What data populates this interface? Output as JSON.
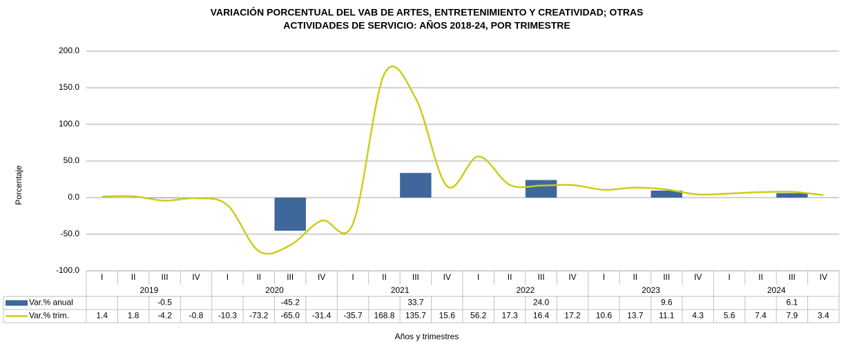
{
  "chart_data": {
    "type": "bar-line",
    "title": [
      "VARIACIÓN PORCENTUAL DEL VAB DE ARTES, ENTRETENIMIENTO Y CREATIVIDAD;  OTRAS",
      "ACTIVIDADES DE SERVICIO: AÑOS 2018-24, POR TRIMESTRE"
    ],
    "y_label": "Porcentaje",
    "x_label": "Años y trimestres",
    "categories": [
      "I",
      "II",
      "III",
      "IV",
      "I",
      "II",
      "III",
      "IV",
      "I",
      "II",
      "III",
      "IV",
      "I",
      "II",
      "III",
      "IV",
      "I",
      "II",
      "III",
      "IV",
      "I",
      "II",
      "III",
      "IV"
    ],
    "groups": [
      "2019",
      "2020",
      "2021",
      "2022",
      "2023",
      "2024"
    ],
    "ylim": [
      -100,
      200
    ],
    "yticks": [
      {
        "value": -100,
        "label": "-100.0"
      },
      {
        "value": -50,
        "label": "-50.0"
      },
      {
        "value": 0,
        "label": "0.0"
      },
      {
        "value": 50,
        "label": "50.0"
      },
      {
        "value": 100,
        "label": "100.0"
      },
      {
        "value": 150,
        "label": "150.0"
      },
      {
        "value": 200,
        "label": "200.0"
      }
    ],
    "grid": true,
    "series": [
      {
        "name": "Var.% anual",
        "type": "bar",
        "color": "#3e689c",
        "values": [
          null,
          null,
          -0.5,
          null,
          null,
          null,
          -45.2,
          null,
          null,
          null,
          33.7,
          null,
          null,
          null,
          24.0,
          null,
          null,
          null,
          9.6,
          null,
          null,
          null,
          6.1,
          null
        ],
        "value_labels": [
          null,
          null,
          "-0.5",
          null,
          null,
          null,
          "-45.2",
          null,
          null,
          null,
          "33.7",
          null,
          null,
          null,
          "24.0",
          null,
          null,
          null,
          "9.6",
          null,
          null,
          null,
          "6.1",
          null
        ]
      },
      {
        "name": "Var.% trim.",
        "type": "line",
        "color": "#cccc1a",
        "values": [
          1.4,
          1.8,
          -4.2,
          -0.8,
          -10.3,
          -73.2,
          -65.0,
          -31.4,
          -35.7,
          168.8,
          135.7,
          15.6,
          56.2,
          17.3,
          16.4,
          17.2,
          10.6,
          13.7,
          11.1,
          4.3,
          5.6,
          7.4,
          7.9,
          3.4
        ],
        "value_labels": [
          "1.4",
          "1.8",
          "-4.2",
          "-0.8",
          "-10.3",
          "-73.2",
          "-65.0",
          "-31.4",
          "-35.7",
          "168.8",
          "135.7",
          "15.6",
          "56.2",
          "17.3",
          "16.4",
          "17.2",
          "10.6",
          "13.7",
          "11.1",
          "4.3",
          "5.6",
          "7.4",
          "7.9",
          "3.4"
        ]
      }
    ]
  }
}
